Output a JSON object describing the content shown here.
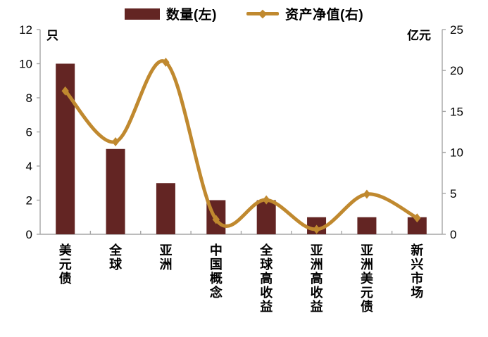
{
  "chart_data": {
    "type": "bar",
    "subtype": "combo-bar-line-dual-axis",
    "categories": [
      "美元债",
      "全球",
      "亚洲",
      "中国概念",
      "全球高收益",
      "亚洲高收益",
      "亚洲美元债",
      "新兴市场"
    ],
    "series": [
      {
        "name": "数量(左)",
        "type": "bar",
        "axis": "left",
        "color": "#632523",
        "values": [
          10,
          5,
          3,
          2,
          2,
          1,
          1,
          1
        ]
      },
      {
        "name": "资产净值(右)",
        "type": "line",
        "axis": "right",
        "color": "#c0892f",
        "marker": "diamond",
        "smooth": true,
        "values": [
          17.5,
          11.3,
          21,
          1.8,
          4.2,
          0.6,
          4.9,
          2
        ]
      }
    ],
    "left_axis": {
      "unit_label": "只",
      "min": 0,
      "max": 12,
      "ticks": [
        0,
        2,
        4,
        6,
        8,
        10,
        12
      ]
    },
    "right_axis": {
      "unit_label": "亿元",
      "min": 0,
      "max": 25,
      "ticks": [
        0,
        5,
        10,
        15,
        20,
        25
      ]
    },
    "title": "",
    "grid": false,
    "legend_position": "top",
    "axis_line_color": "#a6a6a6"
  }
}
